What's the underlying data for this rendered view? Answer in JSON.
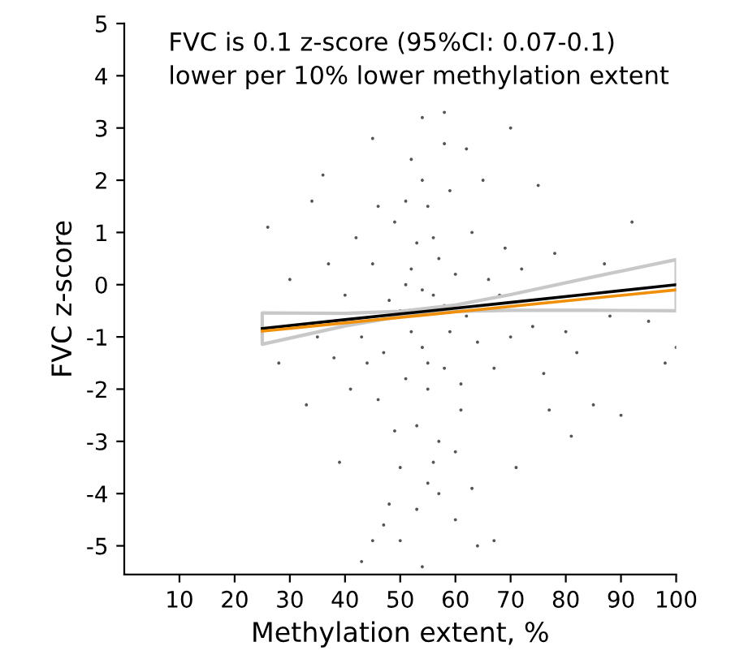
{
  "chart_data": {
    "type": "scatter",
    "xlabel": "Methylation extent, %",
    "ylabel": "FVC z-score",
    "annotations": [
      "FVC is 0.1 z-score (95%CI: 0.07-0.1)\nlower per 10% lower methylation extent"
    ],
    "xlim": [
      0,
      100
    ],
    "ylim": [
      -5.55,
      5
    ],
    "xticks": [
      10,
      20,
      30,
      40,
      50,
      60,
      70,
      80,
      90,
      100
    ],
    "yticks": [
      -5,
      -4,
      -3,
      -2,
      -1,
      0,
      1,
      2,
      3,
      4,
      5
    ],
    "grid": false,
    "series": [
      {
        "marker": "circle",
        "color": "#555555",
        "x": [
          50,
          52,
          54,
          56,
          58,
          53,
          55,
          57,
          51,
          59,
          48,
          60,
          47,
          62,
          45,
          64,
          46,
          63,
          49,
          61,
          55,
          53,
          57,
          54,
          56,
          52,
          58,
          55,
          60,
          50,
          59,
          51,
          44,
          66,
          43,
          67,
          42,
          68,
          41,
          69,
          40,
          70,
          38,
          72,
          37,
          74,
          35,
          76,
          33,
          78,
          30,
          80,
          28,
          82,
          85,
          88,
          90,
          92,
          95,
          98,
          100,
          26,
          45,
          62,
          54,
          58,
          48,
          53,
          60,
          63,
          43,
          64,
          67,
          54,
          45,
          50,
          47,
          57,
          71,
          65,
          46,
          39,
          77,
          75,
          36,
          81,
          87,
          70,
          34,
          52,
          56,
          49,
          61,
          58,
          54,
          51,
          55
        ],
        "values": [
          -0.5,
          0.3,
          -1.2,
          -0.2,
          -1.6,
          0.8,
          -2.0,
          0.5,
          -1.8,
          -0.9,
          -0.3,
          0.2,
          -1.3,
          -0.6,
          0.4,
          -1.1,
          -2.2,
          1.0,
          1.2,
          -2.4,
          1.5,
          -2.7,
          -3.0,
          2.0,
          -3.4,
          2.4,
          2.7,
          -3.8,
          -3.2,
          -3.5,
          1.8,
          1.6,
          -1.5,
          0.1,
          -1.0,
          -1.6,
          0.9,
          -0.2,
          -2.0,
          0.7,
          -0.2,
          -1.0,
          -1.4,
          0.3,
          0.4,
          -0.8,
          -1.0,
          -1.7,
          -2.3,
          0.6,
          0.1,
          -0.9,
          -1.5,
          -1.3,
          -2.3,
          -0.6,
          -2.5,
          1.2,
          -0.7,
          -1.5,
          -1.2,
          1.1,
          2.8,
          2.6,
          3.2,
          3.3,
          -4.2,
          -4.3,
          -4.5,
          -3.9,
          -5.3,
          -5.0,
          -4.9,
          -5.4,
          -4.9,
          -4.9,
          -4.6,
          -4.0,
          -3.5,
          2.0,
          1.5,
          -3.4,
          -2.4,
          1.9,
          2.1,
          -2.9,
          0.4,
          3.0,
          1.6,
          -0.9,
          0.9,
          -2.8,
          -1.9,
          -0.4,
          -0.1,
          0.0,
          -1.5
        ]
      },
      {
        "type": "line",
        "color": "#000000",
        "x": [
          25,
          40,
          50,
          60,
          70,
          85,
          100
        ],
        "values": [
          -0.84,
          -0.67,
          -0.56,
          -0.45,
          -0.34,
          -0.17,
          0.0
        ],
        "lower": [
          -1.14,
          -0.79,
          -0.61,
          -0.51,
          -0.49,
          -0.49,
          -0.5
        ],
        "upper": [
          -0.54,
          -0.55,
          -0.51,
          -0.39,
          -0.19,
          0.15,
          0.48
        ]
      },
      {
        "type": "line",
        "color": "#f0900a",
        "x": [
          25,
          100
        ],
        "values": [
          -0.89,
          -0.1
        ]
      }
    ]
  }
}
